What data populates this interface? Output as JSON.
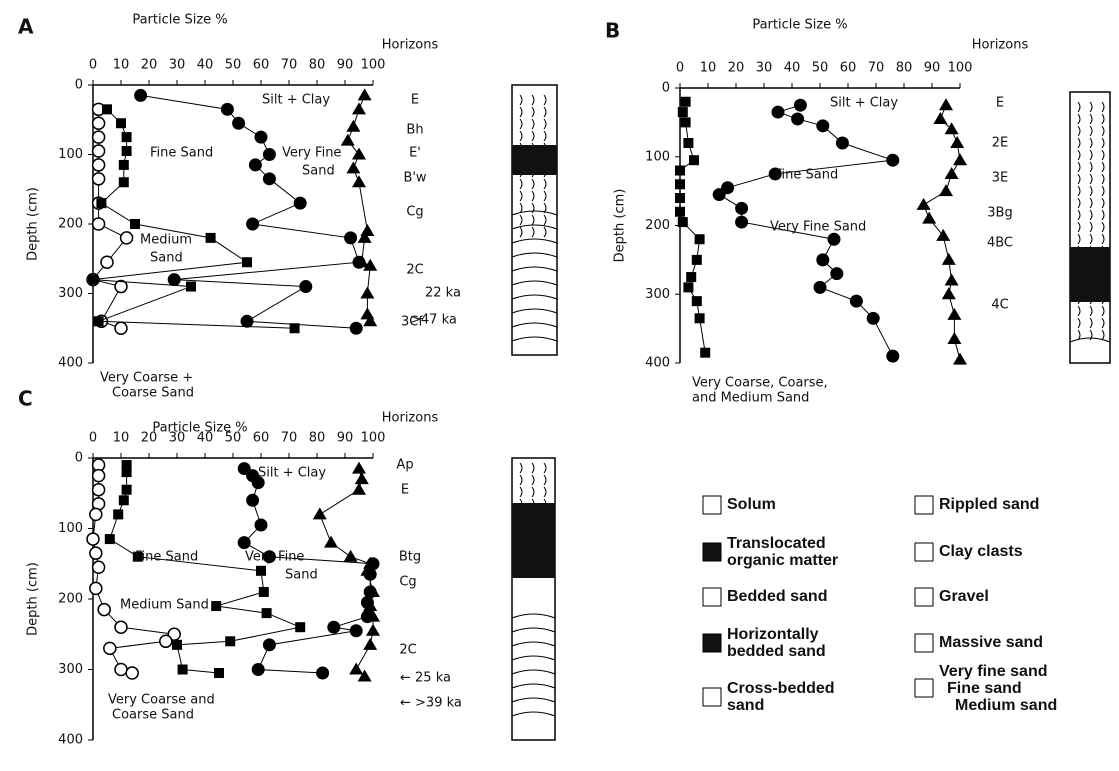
{
  "chart_data": [
    {
      "type": "scatter",
      "panel_label": "A",
      "title": "Particle Size %",
      "y_label": "Depth (cm)",
      "horizons_label": "Horizons",
      "xlim": [
        0,
        100
      ],
      "xticks": [
        0,
        10,
        20,
        30,
        40,
        50,
        60,
        70,
        80,
        90,
        100
      ],
      "ylim": [
        0,
        400
      ],
      "y_inverted": true,
      "yticks": [
        0,
        100,
        200,
        300,
        400
      ],
      "series": [
        {
          "marker": "open-circle",
          "color": "#000000",
          "y": [
            35,
            55,
            75,
            95,
            115,
            135,
            170,
            200,
            220,
            255,
            280,
            290,
            340,
            350
          ],
          "x": [
            2,
            2,
            2,
            2,
            2,
            2,
            2,
            2,
            12,
            5,
            0,
            10,
            3,
            10
          ]
        },
        {
          "marker": "square",
          "color": "#000000",
          "y": [
            35,
            55,
            75,
            95,
            115,
            140,
            170,
            200,
            220,
            255,
            280,
            290,
            340,
            350
          ],
          "x": [
            5,
            10,
            12,
            12,
            11,
            11,
            3,
            15,
            42,
            55,
            0,
            35,
            2,
            72
          ]
        },
        {
          "marker": "filled-circle",
          "color": "#000000",
          "y": [
            15,
            35,
            55,
            75,
            100,
            115,
            135,
            170,
            200,
            220,
            255,
            280,
            290,
            340,
            350
          ],
          "x": [
            17,
            48,
            52,
            60,
            63,
            58,
            63,
            74,
            57,
            92,
            95,
            29,
            76,
            55,
            94
          ]
        },
        {
          "marker": "triangle",
          "color": "#000000",
          "y": [
            15,
            35,
            60,
            80,
            100,
            120,
            140,
            210,
            220,
            255,
            260,
            300,
            330,
            340
          ],
          "x": [
            97,
            95,
            93,
            91,
            95,
            93,
            95,
            98,
            97,
            96,
            99,
            98,
            98,
            99
          ]
        }
      ],
      "horizons": [
        "E",
        "Bh",
        "E'",
        "B'w",
        "Cg",
        "2C",
        "3Cf"
      ],
      "ages": [
        "22 ka",
        ">47 ka"
      ],
      "annotations": [
        [
          "Silt + Clay"
        ],
        [
          "Fine Sand"
        ],
        [
          "Very Fine",
          "Sand"
        ],
        [
          "Medium",
          "Sand"
        ],
        [
          "Very Coarse +",
          "Coarse Sand"
        ]
      ]
    },
    {
      "type": "scatter",
      "panel_label": "B",
      "title": "Particle Size %",
      "y_label": "Depth (cm)",
      "horizons_label": "Horizons",
      "xlim": [
        0,
        100
      ],
      "xticks": [
        0,
        10,
        20,
        30,
        40,
        50,
        60,
        70,
        80,
        90,
        100
      ],
      "ylim": [
        0,
        400
      ],
      "y_inverted": true,
      "yticks": [
        0,
        100,
        200,
        300,
        400
      ],
      "series": [
        {
          "marker": "square",
          "color": "#000000",
          "y": [
            20,
            35,
            50,
            80,
            105,
            120,
            140,
            160,
            180,
            195,
            220,
            250,
            275,
            290,
            310,
            335,
            385
          ],
          "x": [
            2,
            1,
            2,
            3,
            5,
            0,
            0,
            0,
            0,
            1,
            7,
            6,
            4,
            3,
            6,
            7,
            9
          ]
        },
        {
          "marker": "filled-circle",
          "color": "#000000",
          "y": [
            25,
            35,
            45,
            55,
            80,
            105,
            125,
            145,
            155,
            175,
            195,
            220,
            250,
            270,
            290,
            310,
            335,
            390
          ],
          "x": [
            43,
            35,
            42,
            51,
            58,
            76,
            34,
            17,
            14,
            22,
            22,
            55,
            51,
            56,
            50,
            63,
            69,
            76
          ]
        },
        {
          "marker": "triangle",
          "color": "#000000",
          "y": [
            25,
            45,
            60,
            80,
            105,
            125,
            150,
            170,
            190,
            215,
            250,
            280,
            300,
            330,
            365,
            395
          ],
          "x": [
            95,
            93,
            97,
            99,
            100,
            97,
            95,
            87,
            89,
            94,
            96,
            97,
            96,
            98,
            98,
            100
          ]
        }
      ],
      "horizons": [
        "E",
        "2E",
        "3E",
        "3Bg",
        "4BC",
        "4C"
      ],
      "ages": [],
      "annotations": [
        [
          "Silt + Clay"
        ],
        [
          "Fine Sand"
        ],
        [
          "Very Fine Sand"
        ],
        [
          "Very Coarse, Coarse,",
          "and Medium Sand"
        ]
      ]
    },
    {
      "type": "scatter",
      "panel_label": "C",
      "title": "Particle Size %",
      "y_label": "Depth (cm)",
      "horizons_label": "Horizons",
      "xlim": [
        0,
        100
      ],
      "xticks": [
        0,
        10,
        20,
        30,
        40,
        50,
        60,
        70,
        80,
        90,
        100
      ],
      "ylim": [
        0,
        400
      ],
      "y_inverted": true,
      "yticks": [
        0,
        100,
        200,
        300,
        400
      ],
      "series": [
        {
          "marker": "open-circle",
          "color": "#000000",
          "y": [
            10,
            25,
            45,
            65,
            80,
            115,
            135,
            155,
            185,
            215,
            240,
            250,
            260,
            270,
            300,
            305
          ],
          "x": [
            2,
            2,
            2,
            2,
            1,
            0,
            1,
            2,
            1,
            4,
            10,
            29,
            26,
            6,
            10,
            14
          ]
        },
        {
          "marker": "square",
          "color": "#000000",
          "y": [
            10,
            20,
            45,
            60,
            80,
            115,
            140,
            160,
            190,
            210,
            220,
            240,
            260,
            265,
            300,
            305
          ],
          "x": [
            12,
            12,
            12,
            11,
            9,
            6,
            16,
            60,
            61,
            44,
            62,
            74,
            49,
            30,
            32,
            45
          ]
        },
        {
          "marker": "filled-circle",
          "color": "#000000",
          "y": [
            15,
            25,
            35,
            60,
            95,
            120,
            140,
            150,
            165,
            190,
            205,
            225,
            240,
            245,
            265,
            300,
            305
          ],
          "x": [
            54,
            57,
            59,
            57,
            60,
            54,
            63,
            100,
            99,
            99,
            98,
            98,
            86,
            94,
            63,
            59,
            82
          ]
        },
        {
          "marker": "triangle",
          "color": "#000000",
          "y": [
            15,
            30,
            45,
            80,
            120,
            140,
            150,
            160,
            190,
            210,
            225,
            245,
            265,
            300,
            310
          ],
          "x": [
            95,
            96,
            95,
            81,
            85,
            92,
            99,
            98,
            100,
            99,
            100,
            100,
            99,
            94,
            97
          ]
        }
      ],
      "horizons": [
        "Ap",
        "E",
        "Btg",
        "Cg",
        "2C"
      ],
      "ages": [
        "← 25 ka",
        "← >39 ka"
      ],
      "annotations": [
        [
          "Silt + Clay"
        ],
        [
          "Fine Sand"
        ],
        [
          "Very Fine",
          "Sand"
        ],
        [
          "Medium Sand"
        ],
        [
          "Very Coarse and",
          "Coarse Sand"
        ]
      ]
    }
  ],
  "legend": [
    [
      "Solum"
    ],
    [
      "Translocated",
      "organic matter"
    ],
    [
      "Bedded sand"
    ],
    [
      "Horizontally",
      "bedded sand"
    ],
    [
      "Cross-bedded",
      "sand"
    ],
    [
      "Rippled sand"
    ],
    [
      "Clay clasts"
    ],
    [
      "Gravel"
    ],
    [
      "Massive sand"
    ],
    [
      "Very fine sand",
      "Fine sand",
      "Medium sand"
    ]
  ]
}
